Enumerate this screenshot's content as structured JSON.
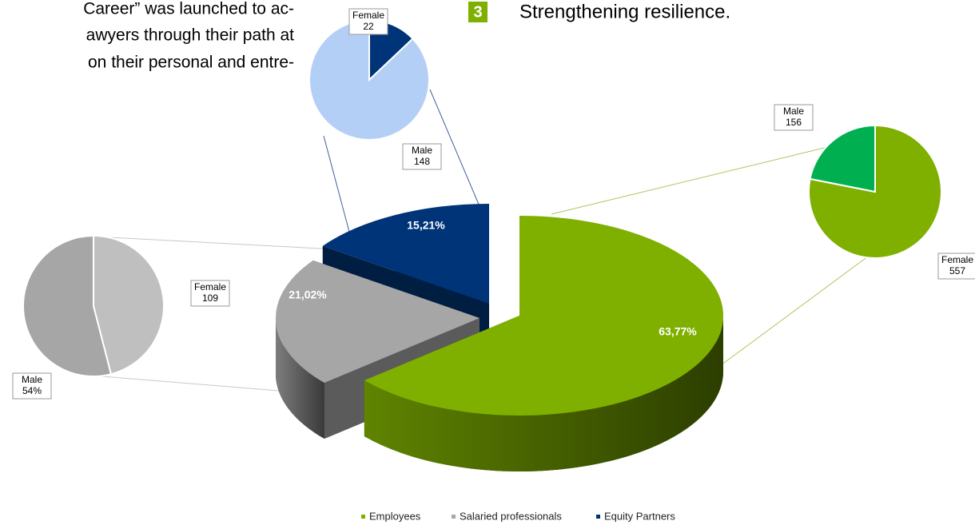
{
  "document": {
    "text_lines": [
      "Career” was launched to ac-",
      "awyers through their path at",
      "on their personal and entre-"
    ],
    "list_number": "3",
    "list_item": "Strengthening resilience."
  },
  "chart_data": {
    "type": "pie",
    "categories": [
      "Employees",
      "Salaried professionals",
      "Equity Partners"
    ],
    "values": [
      63.77,
      21.02,
      15.21
    ],
    "value_labels": [
      "63,77%",
      "21,02%",
      "15,21%"
    ],
    "colors": [
      "#7fb000",
      "#a6a6a6",
      "#003478"
    ],
    "legend": "bottom",
    "breakdowns": [
      {
        "categories": [
          "Female",
          "Male"
        ],
        "values": [
          557,
          156
        ],
        "colors": [
          "#7fb000",
          "#00b050"
        ]
      },
      {
        "categories": [
          "Female",
          "Male"
        ],
        "values": [
          109,
          128
        ],
        "value_labels": [
          "109",
          "54%"
        ],
        "colors": [
          "#bfbfbf",
          "#a6a6a6"
        ]
      },
      {
        "categories": [
          "Female",
          "Male"
        ],
        "values": [
          22,
          148
        ],
        "colors": [
          "#003478",
          "#b4cff5"
        ]
      }
    ]
  }
}
